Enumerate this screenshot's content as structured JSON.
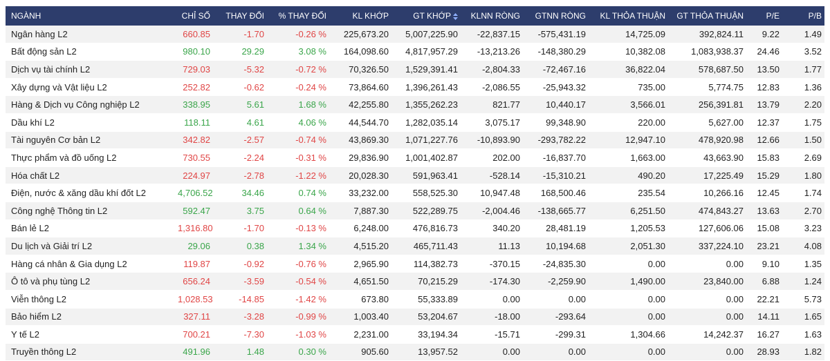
{
  "table": {
    "header": [
      "NGÀNH",
      "CHỈ SỐ",
      "THAY ĐỔI",
      "% THAY ĐỔI",
      "KL KHỚP",
      "GT KHỚP",
      "KLNN RÒNG",
      "GTNN RÒNG",
      "KL THỎA THUẬN",
      "GT THỎA THUẬN",
      "P/E",
      "P/B"
    ],
    "rows": [
      [
        "Ngân hàng L2",
        "660.85",
        "-1.70",
        "-0.26 %",
        "225,673.20",
        "5,007,225.90",
        "-22,837.15",
        "-575,431.19",
        "14,725.09",
        "392,824.11",
        "9.22",
        "1.49"
      ],
      [
        "Bất động sản L2",
        "980.10",
        "29.29",
        "3.08 %",
        "164,098.60",
        "4,817,957.29",
        "-13,213.26",
        "-148,380.29",
        "10,382.08",
        "1,083,938.37",
        "24.46",
        "3.52"
      ],
      [
        "Dịch vụ tài chính L2",
        "729.03",
        "-5.32",
        "-0.72 %",
        "70,326.50",
        "1,529,391.41",
        "-2,804.33",
        "-72,467.16",
        "36,822.04",
        "578,687.50",
        "13.50",
        "1.77"
      ],
      [
        "Xây dựng và Vật liệu L2",
        "252.82",
        "-0.62",
        "-0.24 %",
        "73,864.60",
        "1,396,261.43",
        "-2,086.55",
        "-25,943.32",
        "735.00",
        "5,774.75",
        "12.83",
        "1.36"
      ],
      [
        "Hàng & Dịch vụ Công nghiệp L2",
        "338.95",
        "5.61",
        "1.68 %",
        "42,255.80",
        "1,355,262.23",
        "821.77",
        "10,440.17",
        "3,566.01",
        "256,391.81",
        "13.79",
        "2.20"
      ],
      [
        "Dầu khí L2",
        "118.11",
        "4.61",
        "4.06 %",
        "44,544.70",
        "1,282,035.14",
        "3,075.17",
        "99,348.90",
        "220.00",
        "5,627.00",
        "12.37",
        "1.75"
      ],
      [
        "Tài nguyên Cơ bản L2",
        "342.82",
        "-2.57",
        "-0.74 %",
        "43,869.30",
        "1,071,227.76",
        "-10,893.90",
        "-293,782.22",
        "12,947.10",
        "478,920.98",
        "12.66",
        "1.50"
      ],
      [
        "Thực phẩm và đồ uống L2",
        "730.55",
        "-2.24",
        "-0.31 %",
        "29,836.90",
        "1,001,402.87",
        "202.00",
        "-16,837.70",
        "1,663.00",
        "43,663.90",
        "15.83",
        "2.69"
      ],
      [
        "Hóa chất L2",
        "224.97",
        "-2.78",
        "-1.22 %",
        "20,028.30",
        "591,963.41",
        "-528.14",
        "-15,310.21",
        "490.20",
        "17,225.49",
        "15.29",
        "1.80"
      ],
      [
        "Điện, nước & xăng dầu khí đốt L2",
        "4,706.52",
        "34.46",
        "0.74 %",
        "33,232.00",
        "558,525.30",
        "10,947.48",
        "168,500.46",
        "235.54",
        "10,266.16",
        "12.45",
        "1.74"
      ],
      [
        "Công nghệ Thông tin L2",
        "592.47",
        "3.75",
        "0.64 %",
        "7,887.30",
        "522,289.75",
        "-2,004.46",
        "-138,665.77",
        "6,251.50",
        "474,843.27",
        "13.63",
        "2.70"
      ],
      [
        "Bán lẻ L2",
        "1,316.80",
        "-1.70",
        "-0.13 %",
        "6,248.00",
        "476,816.73",
        "340.20",
        "28,481.19",
        "1,205.53",
        "127,606.06",
        "15.08",
        "3.23"
      ],
      [
        "Du lịch và Giải trí L2",
        "29.06",
        "0.38",
        "1.34 %",
        "4,515.20",
        "465,711.43",
        "11.13",
        "10,194.68",
        "2,051.30",
        "337,224.10",
        "23.21",
        "4.08"
      ],
      [
        "Hàng cá nhân & Gia dụng L2",
        "119.87",
        "-0.92",
        "-0.76 %",
        "2,965.90",
        "114,382.73",
        "-370.15",
        "-24,835.30",
        "0.00",
        "0.00",
        "9.10",
        "1.35"
      ],
      [
        "Ô tô và phụ tùng L2",
        "656.24",
        "-3.59",
        "-0.54 %",
        "4,651.50",
        "70,215.29",
        "-174.30",
        "-2,259.90",
        "1,490.00",
        "23,840.00",
        "6.88",
        "1.24"
      ],
      [
        "Viễn thông L2",
        "1,028.53",
        "-14.85",
        "-1.42 %",
        "673.80",
        "55,333.89",
        "0.00",
        "0.00",
        "0.00",
        "0.00",
        "22.21",
        "5.73"
      ],
      [
        "Bảo hiểm L2",
        "327.11",
        "-3.28",
        "-0.99 %",
        "1,003.40",
        "53,204.67",
        "-18.00",
        "-293.64",
        "0.00",
        "0.00",
        "14.11",
        "1.65"
      ],
      [
        "Y tế L2",
        "700.21",
        "-7.30",
        "-1.03 %",
        "2,231.00",
        "33,194.34",
        "-15.71",
        "-299.31",
        "1,304.66",
        "14,242.37",
        "16.27",
        "1.63"
      ],
      [
        "Truyền thông L2",
        "491.96",
        "1.48",
        "0.30 %",
        "905.60",
        "13,957.52",
        "0.00",
        "0.00",
        "0.00",
        "0.00",
        "28.93",
        "1.82"
      ]
    ]
  }
}
